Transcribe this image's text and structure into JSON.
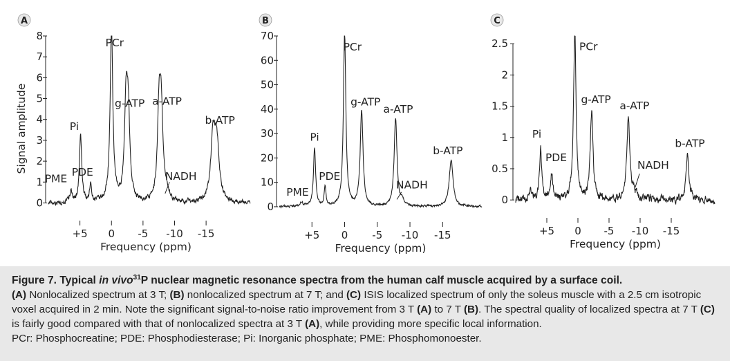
{
  "colors": {
    "line": "#222222",
    "caption_bg": "#e8e8e8",
    "badge_bg": "#e8e8e8"
  },
  "chart_data": [
    {
      "type": "line",
      "panel_label": "A",
      "ylabel": "Signal amplitude",
      "xlabel": "Frequency (ppm)",
      "x_ticks": [
        5,
        0,
        -5,
        -10,
        -15
      ],
      "x_tick_labels": [
        "+5",
        "0",
        "-5",
        "-10",
        "-15"
      ],
      "xlim": [
        10,
        -22
      ],
      "y_ticks": [
        0,
        1,
        2,
        3,
        4,
        5,
        6,
        7,
        8
      ],
      "y_tick_labels": [
        "0",
        "1",
        "2",
        "3",
        "4",
        "5",
        "6",
        "7",
        "8"
      ],
      "ylim": [
        -0.35,
        8
      ],
      "baseline": 0,
      "noise": 0.09,
      "peaks": [
        {
          "name": "PME",
          "x": 6.4,
          "height": 0.5,
          "width": 0.25
        },
        {
          "name": "Pi",
          "x": 4.9,
          "height": 3.2,
          "width": 0.22
        },
        {
          "name": "PDE",
          "x": 3.3,
          "height": 0.8,
          "width": 0.2
        },
        {
          "name": "PCr",
          "x": 0.0,
          "height": 8.2,
          "width": 0.26
        },
        {
          "name": "g-ATP",
          "x": -2.3,
          "height": 4.2,
          "width": 0.3
        },
        {
          "name": "g-ATP-2",
          "x": -2.65,
          "height": 3.9,
          "width": 0.3
        },
        {
          "name": "a-ATP",
          "x": -7.55,
          "height": 4.3,
          "width": 0.3
        },
        {
          "name": "a-ATP-2",
          "x": -7.9,
          "height": 3.8,
          "width": 0.3
        },
        {
          "name": "NADH",
          "x": -8.7,
          "height": 0.5,
          "width": 0.35
        },
        {
          "name": "b-ATP",
          "x": -16.1,
          "height": 3.0,
          "width": 0.42
        },
        {
          "name": "b-ATP-2",
          "x": -16.7,
          "height": 2.7,
          "width": 0.42
        }
      ],
      "labels": [
        {
          "text": "PCr",
          "x": -0.5,
          "y": 7.5
        },
        {
          "text": "Pi",
          "x": 5.9,
          "y": 3.5
        },
        {
          "text": "PDE",
          "x": 4.6,
          "y": 1.3
        },
        {
          "text": "PME",
          "x": 8.8,
          "y": 1.0
        },
        {
          "text": "g-ATP",
          "x": -2.9,
          "y": 4.6
        },
        {
          "text": "a-ATP",
          "x": -8.8,
          "y": 4.7
        },
        {
          "text": "NADH",
          "x": -11.0,
          "y": 1.1
        },
        {
          "text": "b-ATP",
          "x": -17.2,
          "y": 3.8
        }
      ],
      "arrows": [
        {
          "x1": -9.2,
          "y1": 1.0,
          "x2": -8.5,
          "y2": 0.45
        }
      ]
    },
    {
      "type": "line",
      "panel_label": "B",
      "ylabel": "",
      "xlabel": "Frequency (ppm)",
      "x_ticks": [
        5,
        0,
        -5,
        -10,
        -15
      ],
      "x_tick_labels": [
        "+5",
        "0",
        "-5",
        "-10",
        "-15"
      ],
      "xlim": [
        10,
        -21
      ],
      "y_ticks": [
        0,
        10,
        20,
        30,
        40,
        50,
        60,
        70
      ],
      "y_tick_labels": [
        "0",
        "10",
        "20",
        "30",
        "40",
        "50",
        "60",
        "70"
      ],
      "ylim": [
        -2,
        70
      ],
      "baseline": 0,
      "noise": 0.35,
      "peaks": [
        {
          "name": "PME",
          "x": 6.6,
          "height": 1.5,
          "width": 0.35
        },
        {
          "name": "Pi",
          "x": 4.6,
          "height": 24,
          "width": 0.2
        },
        {
          "name": "PDE",
          "x": 3.0,
          "height": 8,
          "width": 0.16
        },
        {
          "name": "PCr",
          "x": 0.0,
          "height": 72,
          "width": 0.22
        },
        {
          "name": "g-ATP",
          "x": -2.6,
          "height": 39,
          "width": 0.26
        },
        {
          "name": "a-ATP",
          "x": -7.8,
          "height": 36,
          "width": 0.26
        },
        {
          "name": "NADH",
          "x": -8.8,
          "height": 2.5,
          "width": 0.3
        },
        {
          "name": "b-ATP",
          "x": -16.3,
          "height": 19,
          "width": 0.35
        }
      ],
      "labels": [
        {
          "text": "PCr",
          "x": -1.2,
          "y": 64
        },
        {
          "text": "Pi",
          "x": 4.6,
          "y": 27
        },
        {
          "text": "PDE",
          "x": 2.3,
          "y": 11
        },
        {
          "text": "PME",
          "x": 7.2,
          "y": 4.5
        },
        {
          "text": "g-ATP",
          "x": -3.2,
          "y": 41.5
        },
        {
          "text": "a-ATP",
          "x": -8.2,
          "y": 38.5
        },
        {
          "text": "NADH",
          "x": -10.3,
          "y": 7.5
        },
        {
          "text": "b-ATP",
          "x": -15.8,
          "y": 21.5
        }
      ],
      "arrows": [
        {
          "x1": -8.7,
          "y1": 6.0,
          "x2": -8.0,
          "y2": 3.0
        }
      ]
    },
    {
      "type": "line",
      "panel_label": "C",
      "ylabel": "",
      "xlabel": "Frequency (ppm)",
      "x_ticks": [
        5,
        0,
        -5,
        -10,
        -15
      ],
      "x_tick_labels": [
        "+5",
        "0",
        "-5",
        "-10",
        "-15"
      ],
      "xlim": [
        10,
        -22
      ],
      "y_ticks": [
        0,
        0.5,
        1,
        1.5,
        2,
        2.5
      ],
      "y_tick_labels": [
        "0",
        "0.5",
        "1",
        "1.5",
        "2",
        "2.5"
      ],
      "ylim": [
        -0.12,
        2.58
      ],
      "baseline": 0,
      "noise": 0.05,
      "peaks": [
        {
          "name": "PME",
          "x": 7.6,
          "height": 0.12,
          "width": 0.3
        },
        {
          "name": "Pi",
          "x": 6.0,
          "height": 0.86,
          "width": 0.2
        },
        {
          "name": "PDE",
          "x": 4.2,
          "height": 0.42,
          "width": 0.2
        },
        {
          "name": "PCr",
          "x": 0.5,
          "height": 2.7,
          "width": 0.24
        },
        {
          "name": "g-ATP",
          "x": -2.2,
          "height": 1.4,
          "width": 0.26
        },
        {
          "name": "a-ATP",
          "x": -8.1,
          "height": 1.3,
          "width": 0.28
        },
        {
          "name": "NADH",
          "x": -9.0,
          "height": 0.15,
          "width": 0.3
        },
        {
          "name": "b-ATP",
          "x": -17.6,
          "height": 0.7,
          "width": 0.3
        }
      ],
      "labels": [
        {
          "text": "PCr",
          "x": -1.7,
          "y": 2.4
        },
        {
          "text": "Pi",
          "x": 6.6,
          "y": 1.0
        },
        {
          "text": "PDE",
          "x": 3.5,
          "y": 0.62
        },
        {
          "text": "g-ATP",
          "x": -2.9,
          "y": 1.55
        },
        {
          "text": "a-ATP",
          "x": -9.1,
          "y": 1.45
        },
        {
          "text": "NADH",
          "x": -12.1,
          "y": 0.5
        },
        {
          "text": "b-ATP",
          "x": -18.0,
          "y": 0.85
        }
      ],
      "arrows": [
        {
          "x1": -9.9,
          "y1": 0.42,
          "x2": -9.2,
          "y2": 0.2
        }
      ]
    }
  ],
  "caption": {
    "title_pre": "Figure 7. Typical ",
    "title_italic": "in vivo",
    "title_sup": "31",
    "title_post": "P nuclear magnetic resonance spectra from the human calf muscle acquired by a surface coil.",
    "ref_a": "(A)",
    "seg1": " Nonlocalized spectrum at 3 T; ",
    "ref_b": "(B)",
    "seg2": " nonlocalized spectrum at 7 T; and ",
    "ref_c": "(C)",
    "seg3": " ISIS localized spectrum of only the soleus muscle with a 2.5 cm isotropic voxel acquired in 2 min. Note the significant signal-to-noise ratio improvement from 3 T ",
    "ref_a2": "(A)",
    "seg4": " to 7 T ",
    "ref_b2": "(B)",
    "seg5": ". The spectral quality of localized spectra at 7 T ",
    "ref_c2": "(C)",
    "seg6": " is fairly good compared with that of nonlocalized spectra at 3 T ",
    "ref_a3": "(A)",
    "seg7": ", while providing more specific local information.",
    "abbrev": "PCr: Phosphocreatine; PDE: Phosphodiesterase; Pi: Inorganic phosphate; PME: Phosphomonoester."
  }
}
